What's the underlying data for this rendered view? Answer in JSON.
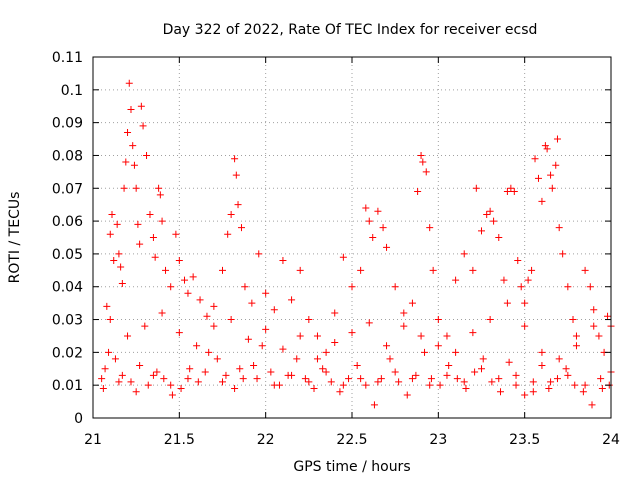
{
  "chart_data": {
    "type": "scatter",
    "title": "Day 322 of 2022, Rate Of TEC Index for receiver ecsd",
    "xlabel": "GPS time / hours",
    "ylabel": "ROTI / TECUs",
    "xlim": [
      21,
      24
    ],
    "ylim": [
      0,
      0.11
    ],
    "xticks": [
      "21",
      "21.5",
      "22",
      "22.5",
      "23",
      "23.5",
      "24"
    ],
    "yticks": [
      "0",
      "0.01",
      "0.02",
      "0.03",
      "0.04",
      "0.05",
      "0.06",
      "0.07",
      "0.08",
      "0.09",
      "0.1",
      "0.11"
    ],
    "grid": true,
    "marker": "plus",
    "color": "#ff0000",
    "series": [
      {
        "points": [
          [
            21.08,
            0.034
          ],
          [
            21.1,
            0.056
          ],
          [
            21.11,
            0.062
          ],
          [
            21.12,
            0.048
          ],
          [
            21.14,
            0.059
          ],
          [
            21.15,
            0.05
          ],
          [
            21.16,
            0.046
          ],
          [
            21.17,
            0.041
          ],
          [
            21.18,
            0.07
          ],
          [
            21.19,
            0.078
          ],
          [
            21.2,
            0.087
          ],
          [
            21.21,
            0.102
          ],
          [
            21.22,
            0.094
          ],
          [
            21.23,
            0.083
          ],
          [
            21.24,
            0.077
          ],
          [
            21.25,
            0.07
          ],
          [
            21.26,
            0.059
          ],
          [
            21.27,
            0.053
          ],
          [
            21.28,
            0.095
          ],
          [
            21.29,
            0.089
          ],
          [
            21.31,
            0.08
          ],
          [
            21.33,
            0.062
          ],
          [
            21.35,
            0.055
          ],
          [
            21.36,
            0.049
          ],
          [
            21.38,
            0.07
          ],
          [
            21.39,
            0.068
          ],
          [
            21.4,
            0.06
          ],
          [
            21.42,
            0.045
          ],
          [
            21.45,
            0.04
          ],
          [
            21.48,
            0.056
          ],
          [
            21.5,
            0.048
          ],
          [
            21.53,
            0.042
          ],
          [
            21.55,
            0.038
          ],
          [
            21.58,
            0.043
          ],
          [
            21.62,
            0.036
          ],
          [
            21.66,
            0.031
          ],
          [
            21.7,
            0.034
          ],
          [
            21.75,
            0.045
          ],
          [
            21.78,
            0.056
          ],
          [
            21.8,
            0.062
          ],
          [
            21.82,
            0.079
          ],
          [
            21.83,
            0.074
          ],
          [
            21.84,
            0.065
          ],
          [
            21.86,
            0.058
          ],
          [
            21.88,
            0.04
          ],
          [
            21.92,
            0.035
          ],
          [
            21.96,
            0.05
          ],
          [
            22.0,
            0.038
          ],
          [
            22.05,
            0.033
          ],
          [
            22.1,
            0.048
          ],
          [
            22.15,
            0.036
          ],
          [
            22.2,
            0.045
          ],
          [
            22.25,
            0.03
          ],
          [
            22.3,
            0.025
          ],
          [
            22.35,
            0.02
          ],
          [
            22.4,
            0.032
          ],
          [
            22.45,
            0.049
          ],
          [
            22.5,
            0.04
          ],
          [
            22.55,
            0.045
          ],
          [
            22.58,
            0.064
          ],
          [
            22.6,
            0.06
          ],
          [
            22.62,
            0.055
          ],
          [
            22.65,
            0.063
          ],
          [
            22.68,
            0.058
          ],
          [
            22.7,
            0.052
          ],
          [
            22.75,
            0.04
          ],
          [
            22.8,
            0.032
          ],
          [
            22.85,
            0.035
          ],
          [
            22.88,
            0.069
          ],
          [
            22.9,
            0.08
          ],
          [
            22.91,
            0.078
          ],
          [
            22.93,
            0.075
          ],
          [
            22.95,
            0.058
          ],
          [
            22.97,
            0.045
          ],
          [
            23.0,
            0.03
          ],
          [
            23.05,
            0.025
          ],
          [
            23.1,
            0.042
          ],
          [
            23.15,
            0.05
          ],
          [
            23.2,
            0.045
          ],
          [
            23.22,
            0.07
          ],
          [
            23.25,
            0.057
          ],
          [
            23.28,
            0.062
          ],
          [
            23.3,
            0.063
          ],
          [
            23.32,
            0.06
          ],
          [
            23.35,
            0.055
          ],
          [
            23.38,
            0.042
          ],
          [
            23.4,
            0.069
          ],
          [
            23.42,
            0.07
          ],
          [
            23.44,
            0.069
          ],
          [
            23.46,
            0.048
          ],
          [
            23.48,
            0.04
          ],
          [
            23.5,
            0.035
          ],
          [
            23.52,
            0.042
          ],
          [
            23.54,
            0.045
          ],
          [
            23.56,
            0.079
          ],
          [
            23.58,
            0.073
          ],
          [
            23.6,
            0.066
          ],
          [
            23.62,
            0.083
          ],
          [
            23.63,
            0.082
          ],
          [
            23.65,
            0.074
          ],
          [
            23.66,
            0.07
          ],
          [
            23.68,
            0.077
          ],
          [
            23.69,
            0.085
          ],
          [
            23.7,
            0.058
          ],
          [
            23.72,
            0.05
          ],
          [
            23.75,
            0.04
          ],
          [
            23.78,
            0.03
          ],
          [
            23.8,
            0.025
          ],
          [
            23.85,
            0.045
          ],
          [
            23.88,
            0.04
          ],
          [
            23.9,
            0.033
          ],
          [
            23.93,
            0.025
          ],
          [
            23.96,
            0.02
          ],
          [
            23.98,
            0.031
          ],
          [
            24.0,
            0.028
          ],
          [
            21.05,
            0.012
          ],
          [
            21.06,
            0.009
          ],
          [
            21.07,
            0.015
          ],
          [
            21.09,
            0.02
          ],
          [
            21.13,
            0.018
          ],
          [
            21.17,
            0.013
          ],
          [
            21.22,
            0.011
          ],
          [
            21.27,
            0.016
          ],
          [
            21.32,
            0.01
          ],
          [
            21.37,
            0.014
          ],
          [
            21.41,
            0.012
          ],
          [
            21.46,
            0.007
          ],
          [
            21.51,
            0.009
          ],
          [
            21.56,
            0.015
          ],
          [
            21.61,
            0.011
          ],
          [
            21.67,
            0.02
          ],
          [
            21.72,
            0.018
          ],
          [
            21.77,
            0.013
          ],
          [
            21.82,
            0.009
          ],
          [
            21.87,
            0.012
          ],
          [
            21.93,
            0.016
          ],
          [
            21.98,
            0.022
          ],
          [
            22.03,
            0.014
          ],
          [
            22.08,
            0.01
          ],
          [
            22.13,
            0.013
          ],
          [
            22.18,
            0.018
          ],
          [
            22.23,
            0.012
          ],
          [
            22.28,
            0.009
          ],
          [
            22.33,
            0.015
          ],
          [
            22.38,
            0.011
          ],
          [
            22.43,
            0.008
          ],
          [
            22.48,
            0.012
          ],
          [
            22.53,
            0.016
          ],
          [
            22.58,
            0.01
          ],
          [
            22.63,
            0.004
          ],
          [
            22.67,
            0.012
          ],
          [
            22.72,
            0.018
          ],
          [
            22.77,
            0.011
          ],
          [
            22.82,
            0.007
          ],
          [
            22.87,
            0.013
          ],
          [
            22.92,
            0.02
          ],
          [
            22.96,
            0.012
          ],
          [
            23.01,
            0.01
          ],
          [
            23.06,
            0.016
          ],
          [
            23.11,
            0.012
          ],
          [
            23.16,
            0.009
          ],
          [
            23.21,
            0.014
          ],
          [
            23.26,
            0.018
          ],
          [
            23.31,
            0.011
          ],
          [
            23.36,
            0.008
          ],
          [
            23.41,
            0.017
          ],
          [
            23.45,
            0.013
          ],
          [
            23.5,
            0.007
          ],
          [
            23.55,
            0.011
          ],
          [
            23.6,
            0.016
          ],
          [
            23.64,
            0.009
          ],
          [
            23.69,
            0.012
          ],
          [
            23.74,
            0.015
          ],
          [
            23.79,
            0.01
          ],
          [
            23.84,
            0.008
          ],
          [
            23.89,
            0.004
          ],
          [
            23.94,
            0.012
          ],
          [
            23.99,
            0.01
          ],
          [
            21.1,
            0.03
          ],
          [
            21.2,
            0.025
          ],
          [
            21.3,
            0.028
          ],
          [
            21.4,
            0.032
          ],
          [
            21.5,
            0.026
          ],
          [
            21.6,
            0.022
          ],
          [
            21.7,
            0.028
          ],
          [
            21.8,
            0.03
          ],
          [
            21.9,
            0.024
          ],
          [
            22.0,
            0.027
          ],
          [
            22.1,
            0.021
          ],
          [
            22.2,
            0.025
          ],
          [
            22.3,
            0.018
          ],
          [
            22.4,
            0.023
          ],
          [
            22.5,
            0.026
          ],
          [
            22.6,
            0.029
          ],
          [
            22.7,
            0.022
          ],
          [
            22.8,
            0.028
          ],
          [
            22.9,
            0.025
          ],
          [
            23.0,
            0.022
          ],
          [
            23.1,
            0.02
          ],
          [
            23.2,
            0.026
          ],
          [
            23.3,
            0.03
          ],
          [
            23.4,
            0.035
          ],
          [
            23.5,
            0.028
          ],
          [
            23.6,
            0.02
          ],
          [
            23.7,
            0.018
          ],
          [
            23.8,
            0.022
          ],
          [
            23.9,
            0.028
          ],
          [
            24.0,
            0.014
          ],
          [
            21.15,
            0.011
          ],
          [
            21.25,
            0.008
          ],
          [
            21.35,
            0.013
          ],
          [
            21.45,
            0.01
          ],
          [
            21.55,
            0.012
          ],
          [
            21.65,
            0.014
          ],
          [
            21.75,
            0.011
          ],
          [
            21.85,
            0.015
          ],
          [
            21.95,
            0.012
          ],
          [
            22.05,
            0.01
          ],
          [
            22.15,
            0.013
          ],
          [
            22.25,
            0.011
          ],
          [
            22.35,
            0.014
          ],
          [
            22.45,
            0.01
          ],
          [
            22.55,
            0.012
          ],
          [
            22.65,
            0.011
          ],
          [
            22.75,
            0.014
          ],
          [
            22.85,
            0.012
          ],
          [
            22.95,
            0.01
          ],
          [
            23.05,
            0.013
          ],
          [
            23.15,
            0.011
          ],
          [
            23.25,
            0.015
          ],
          [
            23.35,
            0.012
          ],
          [
            23.45,
            0.01
          ],
          [
            23.55,
            0.008
          ],
          [
            23.65,
            0.011
          ],
          [
            23.75,
            0.013
          ],
          [
            23.85,
            0.01
          ],
          [
            23.95,
            0.009
          ]
        ]
      }
    ]
  }
}
